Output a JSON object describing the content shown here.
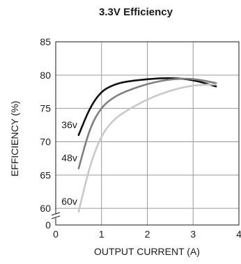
{
  "chart_data": {
    "type": "line",
    "title": "3.3V Efficiency",
    "xlabel": "OUTPUT CURRENT (A)",
    "ylabel": "EFFICIENCY (%)",
    "x_ticks": [
      "0",
      "1",
      "2",
      "3",
      "4"
    ],
    "y_ticks": [
      "0",
      "60",
      "65",
      "70",
      "75",
      "80",
      "85"
    ],
    "xlim": [
      0,
      4
    ],
    "ylim_broken": [
      0,
      60
    ],
    "y_range": [
      57.5,
      85
    ],
    "grid": true,
    "series": [
      {
        "name": "36v",
        "color": "#111111",
        "x": [
          0.5,
          0.75,
          1.0,
          1.25,
          1.5,
          2.0,
          2.5,
          3.0,
          3.5
        ],
        "y": [
          71.0,
          75.2,
          77.6,
          78.5,
          79.0,
          79.4,
          79.6,
          79.3,
          78.3
        ]
      },
      {
        "name": "48v",
        "color": "#7f7f7f",
        "x": [
          0.5,
          0.75,
          1.0,
          1.25,
          1.5,
          2.0,
          2.5,
          3.0,
          3.5
        ],
        "y": [
          66.0,
          72.2,
          75.2,
          76.6,
          77.5,
          78.7,
          79.4,
          79.5,
          78.8
        ]
      },
      {
        "name": "60v",
        "color": "#c8c8c8",
        "x": [
          0.5,
          0.75,
          1.0,
          1.25,
          1.5,
          2.0,
          2.5,
          3.0,
          3.5
        ],
        "y": [
          59.5,
          66.6,
          71.0,
          73.2,
          74.5,
          76.4,
          77.7,
          78.5,
          78.6
        ]
      }
    ]
  }
}
